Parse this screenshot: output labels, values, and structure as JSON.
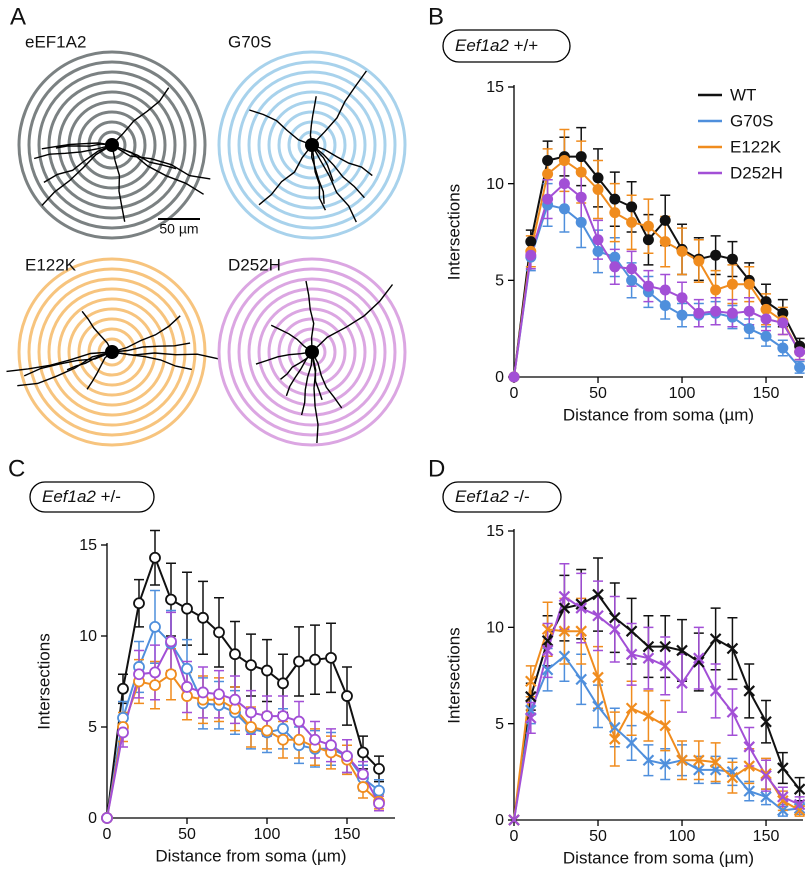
{
  "panel_labels": [
    "A",
    "B",
    "C",
    "D"
  ],
  "panel_a": {
    "labels": [
      "eEF1A2",
      "G70S",
      "E122K",
      "D252H"
    ],
    "scale_bar": "50 µm"
  },
  "chart_data": [
    {
      "type": "line",
      "marker": "filled-circle",
      "label_gene": "Eef1a2",
      "label_genotype": "+/+",
      "xlabel": "Distance from soma (µm)",
      "ylabel": "Intersections",
      "xlim": [
        0,
        172
      ],
      "ylim": [
        0,
        15
      ],
      "xticks": [
        0,
        50,
        100,
        150
      ],
      "yticks": [
        0,
        5,
        10,
        15
      ],
      "legend": "upper right",
      "x": [
        0,
        10,
        20,
        30,
        40,
        50,
        60,
        70,
        80,
        90,
        100,
        110,
        120,
        130,
        140,
        150,
        160,
        170
      ],
      "series": [
        {
          "name": "WT",
          "color": "#111111",
          "values": [
            0,
            7.0,
            11.2,
            11.4,
            11.4,
            10.3,
            9.2,
            8.8,
            7.1,
            8.1,
            6.6,
            6.1,
            6.3,
            6.1,
            5.0,
            3.9,
            3.3,
            1.6
          ],
          "errors": [
            0,
            0.6,
            1.0,
            1.0,
            1.5,
            1.5,
            1.4,
            1.3,
            1.3,
            1.3,
            1.3,
            1.1,
            1.0,
            0.9,
            0.9,
            0.9,
            0.7,
            0.4
          ]
        },
        {
          "name": "G70S",
          "color": "#4f8fdc",
          "values": [
            0,
            6.2,
            8.9,
            8.7,
            8.0,
            6.5,
            6.2,
            5.0,
            4.4,
            3.7,
            3.2,
            3.2,
            3.3,
            3.1,
            2.5,
            2.1,
            1.5,
            0.5
          ],
          "errors": [
            0,
            0.7,
            1.1,
            1.2,
            1.3,
            1.1,
            1.0,
            0.9,
            0.8,
            0.7,
            0.6,
            0.6,
            0.6,
            0.6,
            0.5,
            0.5,
            0.4,
            0.3
          ]
        },
        {
          "name": "E122K",
          "color": "#f08c1e",
          "values": [
            0,
            6.5,
            10.5,
            11.2,
            10.6,
            9.7,
            8.5,
            8.0,
            7.8,
            7.0,
            6.5,
            6.0,
            4.5,
            4.8,
            4.8,
            3.5,
            2.9,
            1.3
          ],
          "errors": [
            0,
            0.8,
            1.3,
            1.6,
            1.6,
            1.5,
            1.5,
            1.4,
            1.4,
            1.3,
            1.2,
            1.1,
            1.0,
            1.0,
            0.9,
            0.8,
            0.7,
            0.4
          ]
        },
        {
          "name": "D252H",
          "color": "#a24fd6",
          "values": [
            0,
            6.3,
            9.2,
            10.0,
            9.3,
            7.1,
            5.7,
            5.6,
            4.7,
            4.5,
            4.1,
            3.3,
            3.4,
            3.3,
            3.4,
            3.0,
            2.8,
            1.3
          ],
          "errors": [
            0,
            0.7,
            1.0,
            1.2,
            1.2,
            1.0,
            0.9,
            0.9,
            0.8,
            0.8,
            0.8,
            0.7,
            0.7,
            0.7,
            0.7,
            0.6,
            0.6,
            0.4
          ]
        }
      ]
    },
    {
      "type": "line",
      "marker": "open-circle",
      "label_gene": "Eef1a2",
      "label_genotype": "+/-",
      "xlabel": "Distance from soma (µm)",
      "ylabel": "Intersections",
      "xlim": [
        0,
        180
      ],
      "ylim": [
        0,
        15
      ],
      "xticks": [
        0,
        50,
        100,
        150
      ],
      "yticks": [
        0,
        5,
        10,
        15
      ],
      "x": [
        0,
        10,
        20,
        30,
        40,
        50,
        60,
        70,
        80,
        90,
        100,
        110,
        120,
        130,
        140,
        150,
        160,
        170
      ],
      "series": [
        {
          "color": "#111111",
          "values": [
            0,
            7.1,
            11.8,
            14.3,
            12.0,
            11.5,
            11.0,
            10.2,
            9.0,
            8.4,
            8.1,
            7.4,
            8.6,
            8.7,
            8.8,
            6.7,
            3.6,
            2.7
          ],
          "errors": [
            0,
            0.8,
            1.3,
            1.5,
            2.0,
            2.0,
            2.0,
            1.9,
            1.8,
            1.7,
            1.7,
            1.6,
            1.9,
            1.9,
            1.9,
            1.6,
            0.9,
            0.7
          ]
        },
        {
          "color": "#4f8fdc",
          "values": [
            0,
            5.5,
            8.3,
            10.5,
            9.6,
            8.2,
            6.3,
            6.2,
            5.8,
            4.9,
            4.7,
            4.9,
            4.0,
            3.8,
            3.8,
            3.4,
            2.2,
            1.5
          ],
          "errors": [
            0,
            0.9,
            1.4,
            2.0,
            1.8,
            1.6,
            1.4,
            1.3,
            1.2,
            1.1,
            1.1,
            1.1,
            1.0,
            1.0,
            0.9,
            0.9,
            0.7,
            0.6
          ]
        },
        {
          "color": "#f08c1e",
          "values": [
            0,
            5.0,
            7.5,
            7.3,
            7.9,
            6.7,
            6.5,
            6.5,
            6.0,
            5.0,
            4.8,
            4.3,
            4.3,
            3.9,
            3.6,
            3.2,
            1.7,
            0.9
          ],
          "errors": [
            0,
            0.8,
            1.2,
            1.3,
            1.4,
            1.3,
            1.3,
            1.2,
            1.2,
            1.1,
            1.0,
            1.0,
            1.0,
            1.0,
            0.9,
            0.8,
            0.6,
            0.4
          ]
        },
        {
          "color": "#a24fd6",
          "values": [
            0,
            4.7,
            7.9,
            8.0,
            9.7,
            7.2,
            6.9,
            6.8,
            6.5,
            5.8,
            5.6,
            5.6,
            5.3,
            4.3,
            4.0,
            3.4,
            2.4,
            0.8
          ],
          "errors": [
            0,
            0.8,
            1.3,
            1.5,
            1.6,
            1.4,
            1.4,
            1.3,
            1.3,
            1.2,
            1.1,
            1.1,
            1.1,
            1.0,
            0.9,
            0.9,
            0.7,
            0.4
          ]
        }
      ]
    },
    {
      "type": "line",
      "marker": "cross",
      "label_gene": "Eef1a2",
      "label_genotype": "-/-",
      "xlabel": "Distance from soma (µm)",
      "ylabel": "Intersections",
      "xlim": [
        0,
        172
      ],
      "ylim": [
        0,
        15
      ],
      "xticks": [
        0,
        50,
        100,
        150
      ],
      "yticks": [
        0,
        5,
        10,
        15
      ],
      "x": [
        0,
        10,
        20,
        30,
        40,
        50,
        60,
        70,
        80,
        90,
        100,
        110,
        120,
        130,
        140,
        150,
        160,
        170
      ],
      "series": [
        {
          "color": "#111111",
          "values": [
            0,
            6.4,
            9.3,
            11.0,
            11.2,
            11.7,
            10.5,
            9.8,
            9.0,
            9.0,
            8.8,
            8.2,
            9.4,
            8.9,
            6.7,
            5.1,
            2.7,
            1.6
          ],
          "errors": [
            0,
            0.7,
            1.3,
            1.7,
            1.8,
            1.9,
            1.8,
            1.7,
            1.6,
            1.6,
            1.6,
            1.5,
            1.6,
            1.6,
            1.4,
            1.1,
            0.8,
            0.6
          ]
        },
        {
          "color": "#4f8fdc",
          "values": [
            0,
            5.7,
            7.8,
            8.5,
            7.3,
            5.9,
            4.8,
            4.0,
            3.1,
            2.9,
            3.1,
            2.6,
            2.6,
            2.5,
            1.5,
            1.2,
            0.5,
            0.6
          ],
          "errors": [
            0,
            0.7,
            1.1,
            1.3,
            1.3,
            1.1,
            1.0,
            0.9,
            0.8,
            0.8,
            0.8,
            0.7,
            0.7,
            0.7,
            0.5,
            0.4,
            0.3,
            0.3
          ]
        },
        {
          "color": "#f08c1e",
          "values": [
            0,
            7.2,
            9.9,
            9.8,
            9.8,
            7.4,
            4.2,
            5.8,
            5.4,
            4.9,
            3.1,
            3.1,
            3.0,
            2.2,
            2.8,
            2.4,
            1.0,
            0.5
          ],
          "errors": [
            0,
            0.8,
            1.4,
            1.7,
            1.7,
            1.6,
            1.4,
            1.4,
            1.3,
            1.3,
            1.0,
            1.0,
            1.0,
            0.8,
            0.9,
            0.8,
            0.5,
            0.3
          ]
        },
        {
          "color": "#a24fd6",
          "values": [
            0,
            5.3,
            8.8,
            11.6,
            11.0,
            10.6,
            9.9,
            8.6,
            8.4,
            8.0,
            7.1,
            8.4,
            6.7,
            5.6,
            3.8,
            2.3,
            1.2,
            0.8
          ],
          "errors": [
            0,
            0.8,
            1.4,
            1.7,
            1.8,
            1.8,
            1.7,
            1.6,
            1.6,
            1.5,
            1.5,
            1.6,
            1.4,
            1.2,
            1.0,
            0.8,
            0.5,
            0.4
          ]
        }
      ]
    }
  ]
}
